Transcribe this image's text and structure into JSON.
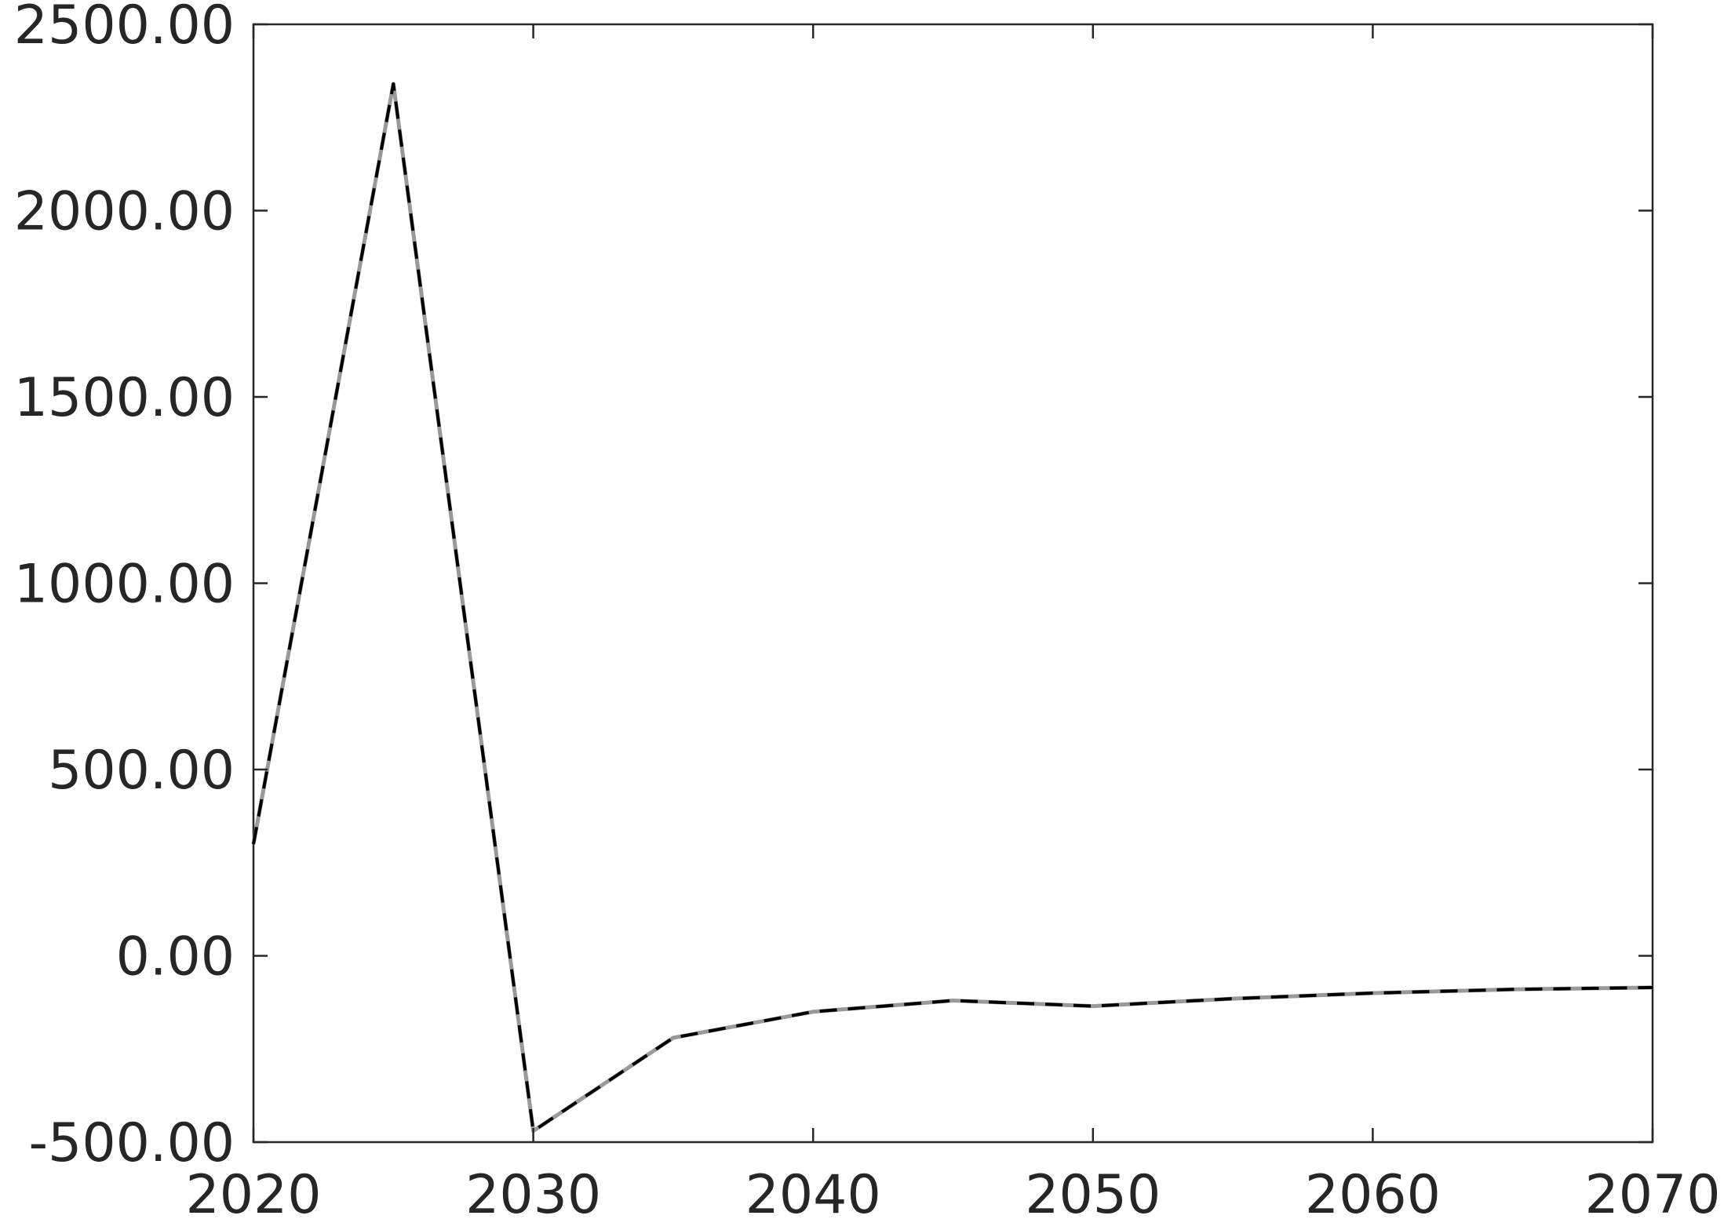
{
  "chart_data": {
    "type": "line",
    "title": "",
    "xlabel": "",
    "ylabel": "",
    "xlim": [
      2020,
      2070
    ],
    "ylim": [
      -500,
      2500
    ],
    "x_ticks": [
      2020,
      2030,
      2040,
      2050,
      2060,
      2070
    ],
    "x_tick_labels": [
      "2020",
      "2030",
      "2040",
      "2050",
      "2060",
      "2070"
    ],
    "y_ticks": [
      -500,
      0,
      500,
      1000,
      1500,
      2000,
      2500
    ],
    "y_tick_labels": [
      "-500.00",
      "0.00",
      "500.00",
      "1000.00",
      "1500.00",
      "2000.00",
      "2500.00"
    ],
    "grid": false,
    "x": [
      2020,
      2025,
      2030,
      2035,
      2040,
      2045,
      2050,
      2055,
      2060,
      2065,
      2070
    ],
    "series": [
      {
        "values": [
          300,
          2340,
          -470,
          -220,
          -150,
          -120,
          -135,
          -115,
          -100,
          -90,
          -85
        ],
        "color": "#999999",
        "style": "solid"
      },
      {
        "values": [
          300,
          2340,
          -470,
          -220,
          -150,
          -120,
          -135,
          -115,
          -100,
          -90,
          -85
        ],
        "color": "#000000",
        "style": "dashed"
      }
    ]
  }
}
